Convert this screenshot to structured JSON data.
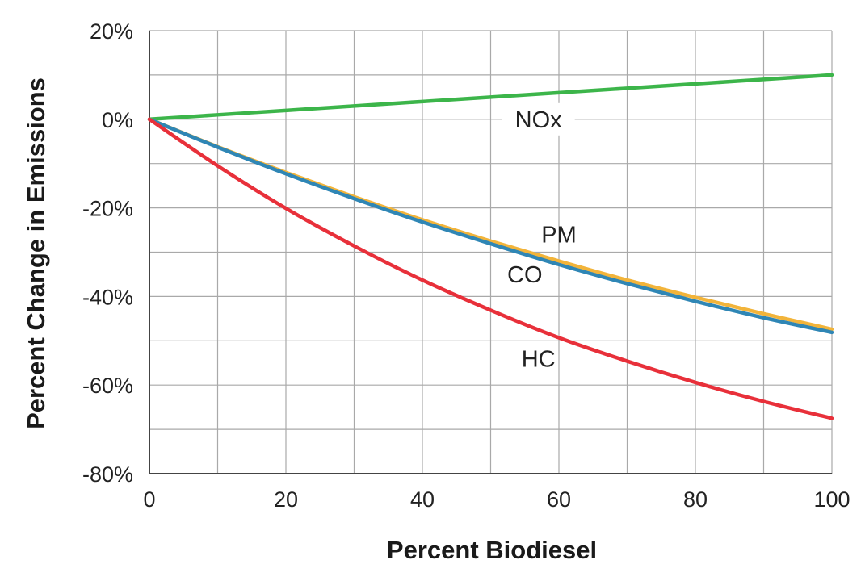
{
  "chart_data": {
    "type": "line",
    "xlabel": "Percent Biodiesel",
    "ylabel": "Percent Change in Emissions",
    "xlim": [
      0,
      100
    ],
    "ylim": [
      -80,
      20
    ],
    "grid": true,
    "x_ticks": [
      0,
      20,
      40,
      60,
      80,
      100
    ],
    "x_tick_labels": [
      "0",
      "20",
      "40",
      "60",
      "80",
      "100"
    ],
    "y_ticks": [
      20,
      0,
      -20,
      -40,
      -60,
      -80
    ],
    "y_tick_labels": [
      "20%",
      "0%",
      "-20%",
      "-40%",
      "-60%",
      "-80%"
    ],
    "x_minor_ticks": [
      10,
      30,
      50,
      70,
      90
    ],
    "y_minor_ticks": [
      10,
      -10,
      -30,
      -50,
      -70
    ],
    "x": [
      0,
      10,
      20,
      30,
      40,
      50,
      60,
      70,
      80,
      90,
      100
    ],
    "series": [
      {
        "name": "NOx",
        "color": "#3cb54a",
        "values": [
          0,
          1,
          2,
          3,
          4,
          5,
          6,
          7,
          8,
          9,
          10
        ],
        "label_at": [
          57,
          0
        ]
      },
      {
        "name": "PM",
        "color": "#f2b43a",
        "values": [
          0,
          -6.2,
          -12,
          -17.5,
          -22.7,
          -27.5,
          -32,
          -36.3,
          -40.2,
          -43.9,
          -47.4
        ],
        "label_at": [
          60,
          -26
        ]
      },
      {
        "name": "CO",
        "color": "#2f86b5",
        "values": [
          0,
          -6.3,
          -12.3,
          -17.9,
          -23.2,
          -28.1,
          -32.8,
          -37.1,
          -41.1,
          -44.8,
          -48.1
        ],
        "label_at": [
          55,
          -35
        ]
      },
      {
        "name": "HC",
        "color": "#e8303a",
        "values": [
          0,
          -10.5,
          -20.1,
          -28.6,
          -36.3,
          -43.1,
          -49.3,
          -54.6,
          -59.4,
          -63.7,
          -67.5
        ],
        "label_at": [
          57,
          -54
        ]
      }
    ]
  }
}
